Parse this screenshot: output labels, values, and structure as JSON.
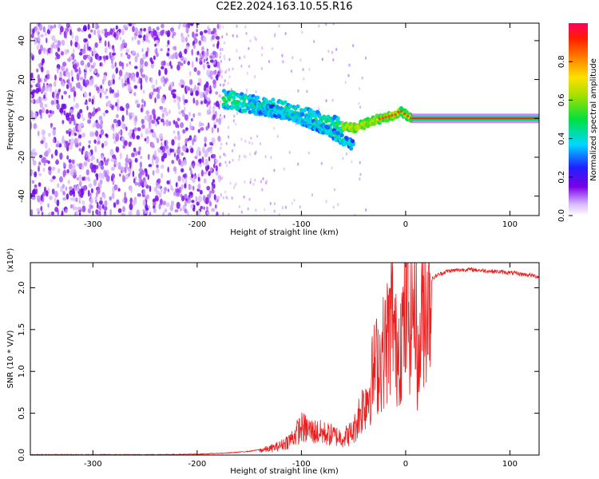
{
  "title": "C2E2.2024.163.10.55.R16",
  "colors": {
    "spectrogram_low": "#7a00e6",
    "spectrogram_mid": "#00d8ff",
    "spectrogram_high": "#ff1e00",
    "snr_line": "#e82020"
  },
  "colorbar": {
    "label": "Normalized spectral amplitude",
    "ticks": [
      "0.0",
      "0.2",
      "0.4",
      "0.6",
      "0.8"
    ],
    "tick_values": [
      0.0,
      0.2,
      0.4,
      0.6,
      0.8
    ],
    "range": [
      0,
      1
    ]
  },
  "chart_data": [
    {
      "type": "heatmap",
      "name": "spectrogram",
      "xlabel": "Height of straight line (km)",
      "ylabel": "Frequency (Hz)",
      "xlim": [
        -360,
        128
      ],
      "ylim": [
        -50,
        49
      ],
      "xticks": [
        -300,
        -200,
        -100,
        0,
        100
      ],
      "yticks": [
        -40,
        -20,
        0,
        20,
        40
      ],
      "noise_region": [
        -360,
        -178
      ],
      "carrier_track": {
        "x": [
          -175,
          -160,
          -140,
          -120,
          -100,
          -80,
          -65,
          -50,
          -40,
          -30,
          -20,
          -10,
          -5,
          5,
          128
        ],
        "y": [
          10,
          8.5,
          6.5,
          4.5,
          1.5,
          -2,
          -3.5,
          -5,
          -3,
          -1,
          0.5,
          2,
          4,
          0,
          0
        ]
      },
      "secondary_track": {
        "x": [
          -150,
          -120,
          -100,
          -80,
          -70,
          -60,
          -50
        ],
        "y": [
          7,
          3,
          0,
          -5,
          -8,
          -11,
          -14
        ]
      }
    },
    {
      "type": "line",
      "name": "snr",
      "xlabel": "Height of straight line (km)",
      "ylabel": "SNR (10 * V/V)",
      "yscale_label": "(x10⁴)",
      "xlim": [
        -360,
        128
      ],
      "ylim": [
        0,
        2.3
      ],
      "xticks": [
        -300,
        -200,
        -100,
        0,
        100
      ],
      "yticks": [
        0.0,
        0.5,
        1.0,
        1.5,
        2.0
      ],
      "series": [
        {
          "x": [
            -360,
            -300,
            -250,
            -200,
            -170,
            -150,
            -130,
            -120,
            -110,
            -100,
            -90,
            -80,
            -70,
            -60,
            -50,
            -45,
            -40,
            -35,
            -30,
            -25,
            -20,
            -15,
            -12,
            -10,
            -5,
            0,
            5,
            10,
            12,
            15,
            20,
            30,
            40,
            60,
            80,
            100,
            120,
            128
          ],
          "y": [
            0.0,
            0.0,
            0.0,
            0.005,
            0.02,
            0.04,
            0.08,
            0.12,
            0.2,
            0.35,
            0.3,
            0.28,
            0.25,
            0.22,
            0.3,
            0.5,
            0.65,
            0.8,
            1.1,
            1.2,
            1.35,
            1.6,
            1.9,
            1.3,
            1.5,
            1.7,
            1.8,
            2.1,
            0.9,
            1.8,
            2.05,
            2.15,
            2.2,
            2.22,
            2.2,
            2.18,
            2.15,
            2.13
          ]
        }
      ]
    }
  ]
}
